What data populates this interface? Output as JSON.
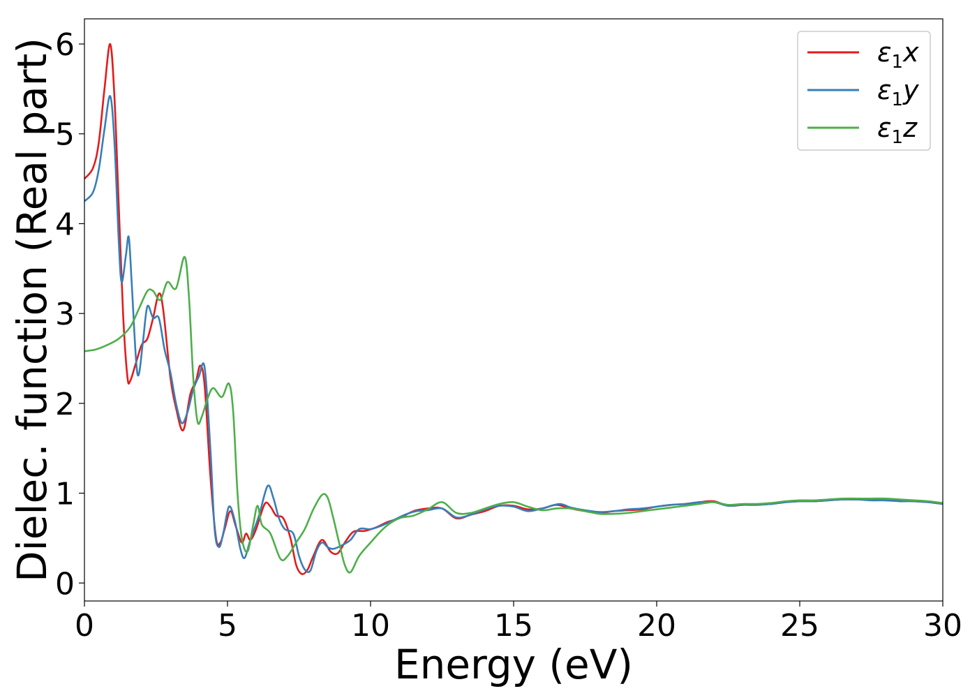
{
  "chart_data": {
    "type": "line",
    "title": "",
    "xlabel": "Energy (eV)",
    "ylabel": "Dielec. function (Real part)",
    "xlim": [
      0,
      30
    ],
    "ylim": [
      -0.2,
      6.28
    ],
    "xticks": [
      0,
      5,
      10,
      15,
      20,
      25,
      30
    ],
    "yticks": [
      0,
      1,
      2,
      3,
      4,
      5,
      6
    ],
    "grid": false,
    "legend_position": "top-right",
    "series": [
      {
        "name": "ε1x",
        "legend_main": "ε",
        "legend_sub": "1",
        "legend_var": "x",
        "color": "#e41a1c",
        "points": [
          [
            0,
            4.5
          ],
          [
            0.3,
            4.62
          ],
          [
            0.5,
            4.9
          ],
          [
            0.7,
            5.5
          ],
          [
            0.9,
            6.0
          ],
          [
            1.05,
            5.4
          ],
          [
            1.2,
            4.2
          ],
          [
            1.35,
            3.0
          ],
          [
            1.5,
            2.3
          ],
          [
            1.6,
            2.25
          ],
          [
            1.8,
            2.45
          ],
          [
            2.0,
            2.65
          ],
          [
            2.2,
            2.72
          ],
          [
            2.4,
            2.95
          ],
          [
            2.6,
            3.22
          ],
          [
            2.75,
            3.05
          ],
          [
            3.0,
            2.3
          ],
          [
            3.2,
            1.95
          ],
          [
            3.45,
            1.7
          ],
          [
            3.7,
            2.1
          ],
          [
            3.9,
            2.25
          ],
          [
            4.05,
            2.42
          ],
          [
            4.2,
            2.2
          ],
          [
            4.4,
            1.2
          ],
          [
            4.6,
            0.5
          ],
          [
            4.75,
            0.45
          ],
          [
            4.9,
            0.6
          ],
          [
            5.1,
            0.8
          ],
          [
            5.3,
            0.62
          ],
          [
            5.5,
            0.45
          ],
          [
            5.65,
            0.55
          ],
          [
            5.8,
            0.48
          ],
          [
            6.0,
            0.6
          ],
          [
            6.3,
            0.88
          ],
          [
            6.5,
            0.85
          ],
          [
            6.7,
            0.75
          ],
          [
            6.95,
            0.72
          ],
          [
            7.2,
            0.5
          ],
          [
            7.4,
            0.2
          ],
          [
            7.6,
            0.1
          ],
          [
            7.8,
            0.15
          ],
          [
            8.0,
            0.3
          ],
          [
            8.3,
            0.48
          ],
          [
            8.6,
            0.35
          ],
          [
            8.85,
            0.33
          ],
          [
            9.1,
            0.45
          ],
          [
            9.4,
            0.57
          ],
          [
            9.8,
            0.58
          ],
          [
            10.2,
            0.62
          ],
          [
            10.6,
            0.68
          ],
          [
            11.0,
            0.72
          ],
          [
            11.5,
            0.8
          ],
          [
            12.0,
            0.83
          ],
          [
            12.5,
            0.83
          ],
          [
            13.0,
            0.72
          ],
          [
            13.5,
            0.76
          ],
          [
            14.0,
            0.8
          ],
          [
            14.5,
            0.86
          ],
          [
            15.0,
            0.86
          ],
          [
            15.5,
            0.82
          ],
          [
            16.0,
            0.83
          ],
          [
            16.5,
            0.87
          ],
          [
            17.0,
            0.83
          ],
          [
            17.5,
            0.8
          ],
          [
            18.0,
            0.78
          ],
          [
            18.5,
            0.8
          ],
          [
            19.0,
            0.81
          ],
          [
            19.5,
            0.82
          ],
          [
            20.0,
            0.85
          ],
          [
            20.5,
            0.87
          ],
          [
            21.0,
            0.88
          ],
          [
            21.5,
            0.9
          ],
          [
            22.0,
            0.91
          ],
          [
            22.5,
            0.86
          ],
          [
            23.0,
            0.87
          ],
          [
            23.5,
            0.87
          ],
          [
            24.0,
            0.88
          ],
          [
            24.5,
            0.9
          ],
          [
            25.0,
            0.91
          ],
          [
            25.5,
            0.91
          ],
          [
            26.0,
            0.92
          ],
          [
            26.5,
            0.93
          ],
          [
            27.0,
            0.93
          ],
          [
            27.5,
            0.93
          ],
          [
            28.0,
            0.92
          ],
          [
            28.5,
            0.92
          ],
          [
            29.0,
            0.91
          ],
          [
            29.5,
            0.9
          ],
          [
            30.0,
            0.88
          ]
        ]
      },
      {
        "name": "ε1y",
        "legend_main": "ε",
        "legend_sub": "1",
        "legend_var": "y",
        "color": "#377eb8",
        "points": [
          [
            0,
            4.25
          ],
          [
            0.3,
            4.35
          ],
          [
            0.5,
            4.6
          ],
          [
            0.7,
            5.05
          ],
          [
            0.9,
            5.42
          ],
          [
            1.05,
            4.9
          ],
          [
            1.2,
            3.8
          ],
          [
            1.3,
            3.35
          ],
          [
            1.45,
            3.65
          ],
          [
            1.55,
            3.85
          ],
          [
            1.65,
            3.35
          ],
          [
            1.8,
            2.5
          ],
          [
            1.9,
            2.32
          ],
          [
            2.05,
            2.7
          ],
          [
            2.2,
            3.08
          ],
          [
            2.4,
            2.95
          ],
          [
            2.6,
            2.95
          ],
          [
            2.8,
            2.6
          ],
          [
            3.0,
            2.35
          ],
          [
            3.2,
            2.0
          ],
          [
            3.4,
            1.78
          ],
          [
            3.6,
            1.9
          ],
          [
            3.8,
            2.15
          ],
          [
            4.0,
            2.3
          ],
          [
            4.2,
            2.4
          ],
          [
            4.4,
            1.5
          ],
          [
            4.55,
            0.6
          ],
          [
            4.7,
            0.4
          ],
          [
            4.85,
            0.55
          ],
          [
            5.05,
            0.85
          ],
          [
            5.25,
            0.7
          ],
          [
            5.45,
            0.38
          ],
          [
            5.6,
            0.28
          ],
          [
            5.8,
            0.48
          ],
          [
            6.1,
            0.75
          ],
          [
            6.4,
            1.08
          ],
          [
            6.6,
            0.95
          ],
          [
            6.8,
            0.72
          ],
          [
            7.0,
            0.6
          ],
          [
            7.3,
            0.55
          ],
          [
            7.5,
            0.3
          ],
          [
            7.7,
            0.15
          ],
          [
            7.9,
            0.14
          ],
          [
            8.1,
            0.35
          ],
          [
            8.3,
            0.45
          ],
          [
            8.5,
            0.4
          ],
          [
            8.7,
            0.38
          ],
          [
            9.0,
            0.42
          ],
          [
            9.3,
            0.48
          ],
          [
            9.6,
            0.6
          ],
          [
            10.0,
            0.6
          ],
          [
            10.4,
            0.64
          ],
          [
            10.8,
            0.7
          ],
          [
            11.2,
            0.76
          ],
          [
            11.6,
            0.8
          ],
          [
            12.0,
            0.81
          ],
          [
            12.5,
            0.83
          ],
          [
            13.0,
            0.73
          ],
          [
            13.5,
            0.76
          ],
          [
            14.0,
            0.82
          ],
          [
            14.5,
            0.86
          ],
          [
            15.0,
            0.85
          ],
          [
            15.5,
            0.8
          ],
          [
            16.0,
            0.83
          ],
          [
            16.6,
            0.88
          ],
          [
            17.0,
            0.84
          ],
          [
            17.5,
            0.81
          ],
          [
            18.0,
            0.79
          ],
          [
            18.5,
            0.8
          ],
          [
            19.0,
            0.82
          ],
          [
            19.5,
            0.83
          ],
          [
            20.0,
            0.85
          ],
          [
            20.5,
            0.87
          ],
          [
            21.0,
            0.88
          ],
          [
            21.5,
            0.9
          ],
          [
            22.0,
            0.9
          ],
          [
            22.5,
            0.86
          ],
          [
            23.0,
            0.87
          ],
          [
            23.5,
            0.87
          ],
          [
            24.0,
            0.88
          ],
          [
            24.5,
            0.9
          ],
          [
            25.0,
            0.91
          ],
          [
            25.5,
            0.91
          ],
          [
            26.0,
            0.92
          ],
          [
            26.5,
            0.93
          ],
          [
            27.0,
            0.93
          ],
          [
            27.5,
            0.92
          ],
          [
            28.0,
            0.92
          ],
          [
            28.5,
            0.91
          ],
          [
            29.0,
            0.91
          ],
          [
            29.5,
            0.9
          ],
          [
            30.0,
            0.88
          ]
        ]
      },
      {
        "name": "ε1z",
        "legend_main": "ε",
        "legend_sub": "1",
        "legend_var": "z",
        "color": "#4daf4a",
        "points": [
          [
            0,
            2.58
          ],
          [
            0.4,
            2.6
          ],
          [
            0.8,
            2.65
          ],
          [
            1.2,
            2.72
          ],
          [
            1.6,
            2.85
          ],
          [
            1.9,
            3.05
          ],
          [
            2.2,
            3.25
          ],
          [
            2.4,
            3.25
          ],
          [
            2.65,
            3.15
          ],
          [
            2.9,
            3.35
          ],
          [
            3.2,
            3.28
          ],
          [
            3.5,
            3.63
          ],
          [
            3.65,
            3.2
          ],
          [
            3.8,
            2.3
          ],
          [
            3.95,
            1.8
          ],
          [
            4.1,
            1.85
          ],
          [
            4.3,
            2.05
          ],
          [
            4.5,
            2.17
          ],
          [
            4.8,
            2.07
          ],
          [
            5.05,
            2.22
          ],
          [
            5.2,
            1.9
          ],
          [
            5.35,
            1.0
          ],
          [
            5.5,
            0.5
          ],
          [
            5.7,
            0.35
          ],
          [
            5.9,
            0.65
          ],
          [
            6.05,
            0.86
          ],
          [
            6.2,
            0.65
          ],
          [
            6.5,
            0.55
          ],
          [
            6.85,
            0.27
          ],
          [
            7.1,
            0.3
          ],
          [
            7.4,
            0.45
          ],
          [
            7.7,
            0.6
          ],
          [
            8.0,
            0.82
          ],
          [
            8.3,
            0.98
          ],
          [
            8.5,
            0.95
          ],
          [
            8.7,
            0.72
          ],
          [
            8.9,
            0.45
          ],
          [
            9.1,
            0.2
          ],
          [
            9.3,
            0.12
          ],
          [
            9.6,
            0.3
          ],
          [
            10.0,
            0.45
          ],
          [
            10.5,
            0.62
          ],
          [
            11.0,
            0.72
          ],
          [
            11.5,
            0.75
          ],
          [
            12.0,
            0.82
          ],
          [
            12.5,
            0.9
          ],
          [
            13.0,
            0.78
          ],
          [
            13.5,
            0.78
          ],
          [
            14.0,
            0.83
          ],
          [
            14.5,
            0.88
          ],
          [
            15.0,
            0.9
          ],
          [
            15.5,
            0.85
          ],
          [
            16.0,
            0.81
          ],
          [
            16.5,
            0.83
          ],
          [
            17.0,
            0.83
          ],
          [
            17.5,
            0.8
          ],
          [
            18.0,
            0.77
          ],
          [
            18.5,
            0.77
          ],
          [
            19.0,
            0.78
          ],
          [
            19.5,
            0.8
          ],
          [
            20.0,
            0.82
          ],
          [
            20.5,
            0.84
          ],
          [
            21.0,
            0.86
          ],
          [
            21.5,
            0.88
          ],
          [
            22.0,
            0.9
          ],
          [
            22.5,
            0.87
          ],
          [
            23.0,
            0.88
          ],
          [
            23.5,
            0.88
          ],
          [
            24.0,
            0.89
          ],
          [
            24.5,
            0.91
          ],
          [
            25.0,
            0.92
          ],
          [
            25.5,
            0.92
          ],
          [
            26.0,
            0.93
          ],
          [
            26.5,
            0.94
          ],
          [
            27.0,
            0.94
          ],
          [
            27.5,
            0.94
          ],
          [
            28.0,
            0.94
          ],
          [
            28.5,
            0.93
          ],
          [
            29.0,
            0.92
          ],
          [
            29.5,
            0.91
          ],
          [
            30.0,
            0.89
          ]
        ]
      }
    ]
  }
}
